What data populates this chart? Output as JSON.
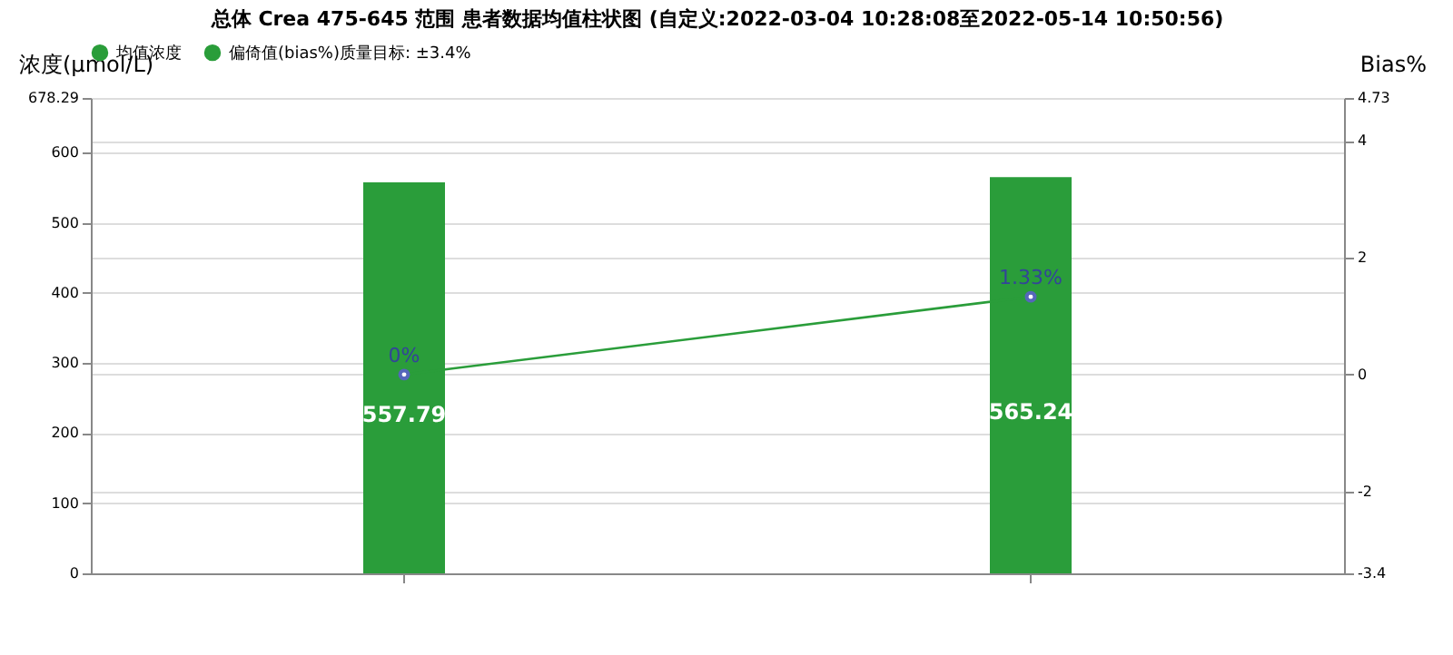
{
  "chart_data": {
    "type": "bar",
    "title": "总体  Crea 475-645 范围 患者数据均值柱状图 (自定义:2022-03-04 10:28:08至2022-05-14 10:50:56)",
    "ylabel": "浓度(μmol/L)",
    "y2label": "Bias%",
    "categories": [
      null,
      null
    ],
    "series": [
      {
        "name": "均值浓度",
        "color": "#2a9d3a",
        "values": [
          557.79,
          565.24
        ],
        "value_labels": [
          "557.79",
          "565.24"
        ]
      },
      {
        "name": "偏倚值(bias%)质量目标: ±3.4%",
        "type": "line",
        "axis": "y2",
        "color": "#2a9d3a",
        "marker": "circle",
        "values": [
          0,
          1.33
        ],
        "value_labels": [
          "0%",
          "1.33%"
        ]
      }
    ],
    "ylim": [
      0,
      678.29
    ],
    "yticks": [
      0,
      100,
      200,
      300,
      400,
      500,
      600,
      678.29
    ],
    "y2lim": [
      -3.4,
      4.73
    ],
    "y2ticks": [
      -3.4,
      -2,
      0,
      2,
      4,
      4.73
    ],
    "grid": true,
    "legend": "top"
  }
}
